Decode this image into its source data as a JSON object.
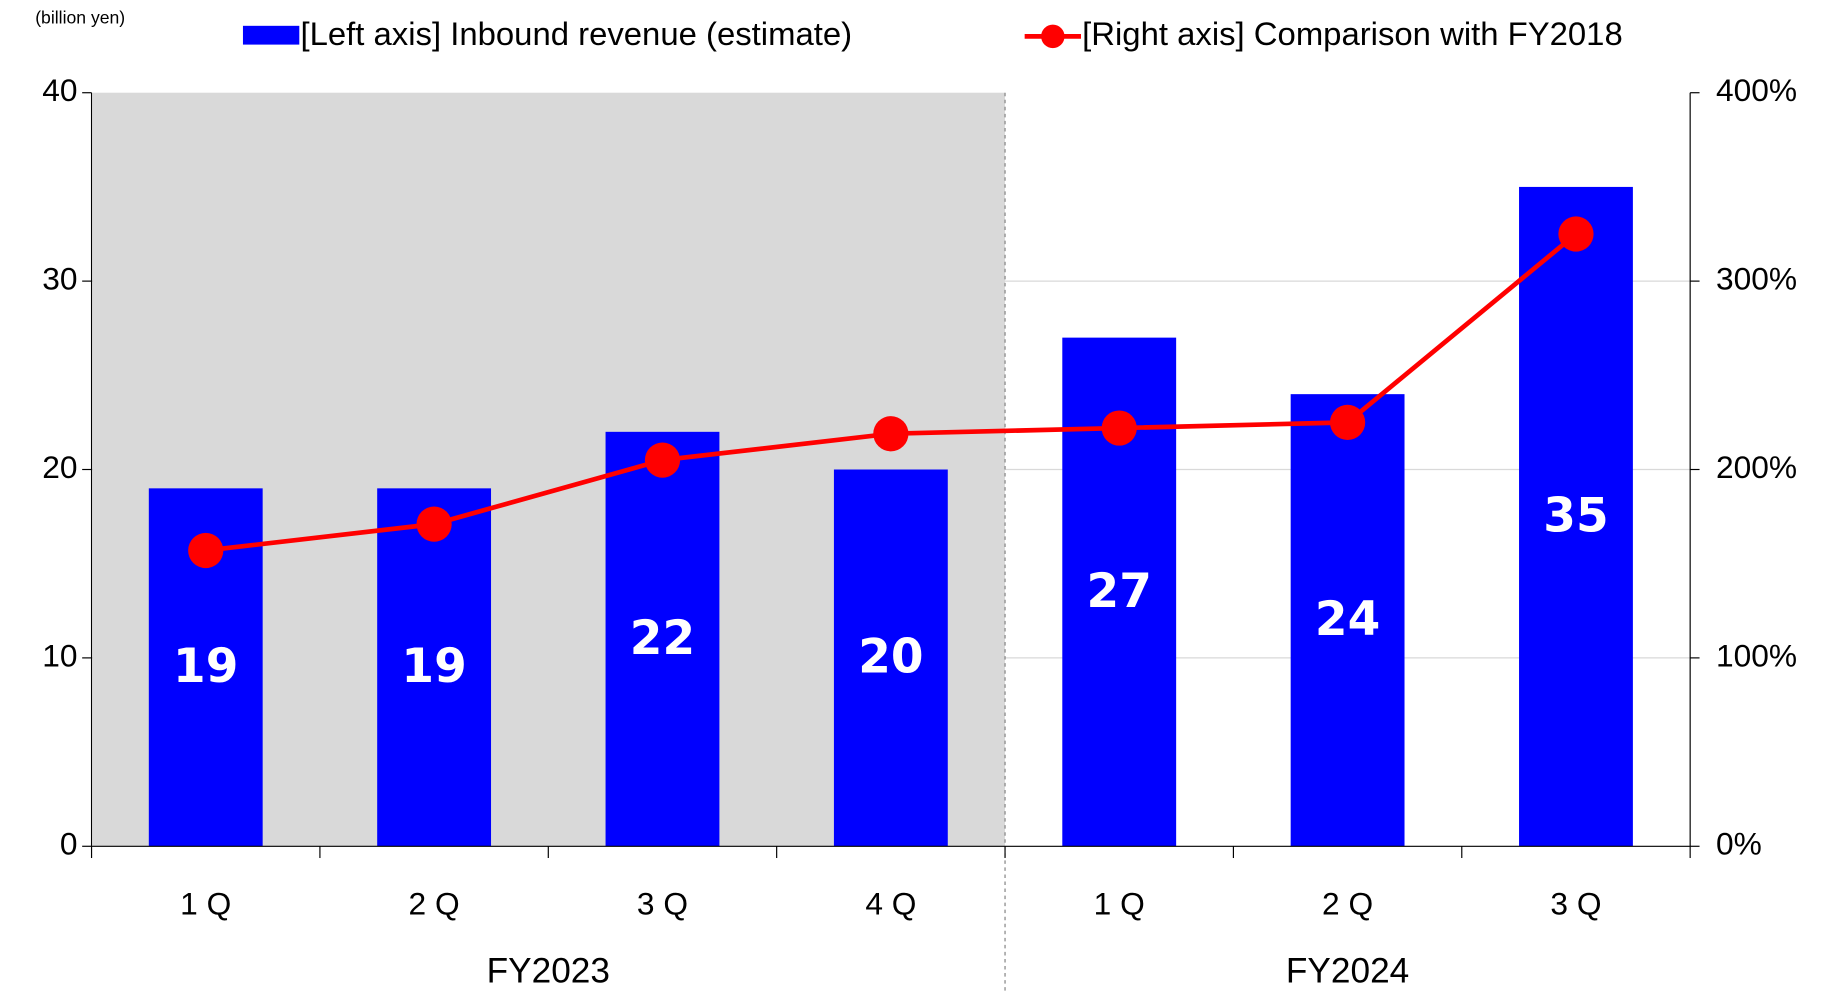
{
  "chart_data": {
    "type": "bar",
    "unit_label": "(billion yen)",
    "groups": [
      {
        "name": "FY2023",
        "categories": [
          "1 Q",
          "2 Q",
          "3 Q",
          "4 Q"
        ],
        "shade": "#d9d9d9"
      },
      {
        "name": "FY2024",
        "categories": [
          "1 Q",
          "2 Q",
          "3 Q"
        ]
      }
    ],
    "series": [
      {
        "name": "[Left axis] Inbound revenue (estimate)",
        "type": "bar",
        "color": "#0000ff",
        "axis": "y",
        "values": [
          19,
          19,
          22,
          20,
          27,
          24,
          35
        ]
      },
      {
        "name": "[Right axis] Comparison with FY2018",
        "type": "line",
        "color": "#ff0000",
        "axis": "y2",
        "values": [
          157,
          171,
          205,
          219,
          222,
          225,
          325
        ]
      }
    ],
    "ylim": [
      0,
      40
    ],
    "yticks": [
      0,
      10,
      20,
      30,
      40
    ],
    "y2lim": [
      0,
      400
    ],
    "y2ticks": [
      {
        "value": 0,
        "label": "0%"
      },
      {
        "value": 100,
        "label": "100%"
      },
      {
        "value": 200,
        "label": "200%"
      },
      {
        "value": 300,
        "label": "300%"
      },
      {
        "value": 400,
        "label": "400%"
      }
    ],
    "grid": true
  }
}
